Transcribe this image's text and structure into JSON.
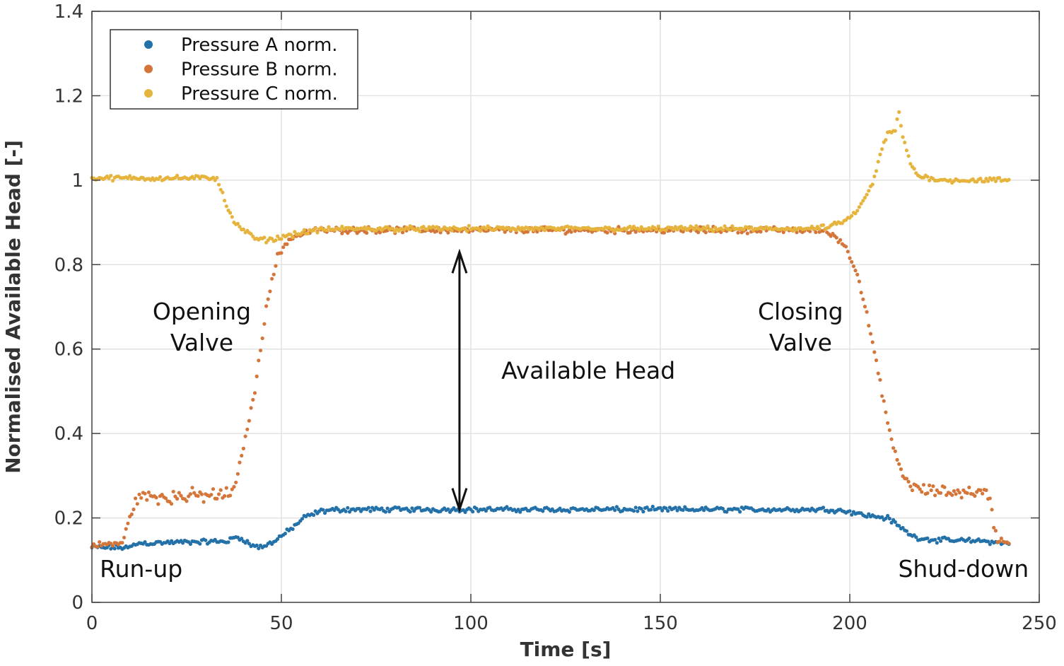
{
  "chart_data": {
    "type": "scatter",
    "xlabel": "Time [s]",
    "ylabel": "Normalised Available Head [-]",
    "xlim": [
      0,
      250
    ],
    "ylim": [
      0,
      1.4
    ],
    "xticks": [
      0,
      50,
      100,
      150,
      200,
      250
    ],
    "yticks": [
      0,
      0.2,
      0.4,
      0.6,
      0.8,
      1,
      1.2,
      1.4
    ],
    "xtick_labels": [
      "0",
      "50",
      "100",
      "150",
      "200",
      "250"
    ],
    "ytick_labels": [
      "0",
      "0.2",
      "0.4",
      "0.6",
      "0.8",
      "1",
      "1.2",
      "1.4"
    ],
    "grid": true,
    "legend_position": "top-left",
    "sample_step_s": 0.5,
    "series": [
      {
        "name": "Pressure A norm.",
        "color": "#2371a8",
        "noise": 0.004,
        "keypoints": [
          [
            0,
            0.13
          ],
          [
            10,
            0.13
          ],
          [
            12,
            0.14
          ],
          [
            36,
            0.145
          ],
          [
            38,
            0.155
          ],
          [
            40,
            0.15
          ],
          [
            42,
            0.135
          ],
          [
            45,
            0.13
          ],
          [
            48,
            0.145
          ],
          [
            52,
            0.17
          ],
          [
            56,
            0.2
          ],
          [
            60,
            0.215
          ],
          [
            65,
            0.22
          ],
          [
            195,
            0.22
          ],
          [
            200,
            0.215
          ],
          [
            205,
            0.205
          ],
          [
            210,
            0.2
          ],
          [
            213,
            0.18
          ],
          [
            217,
            0.155
          ],
          [
            222,
            0.148
          ],
          [
            236,
            0.145
          ],
          [
            240,
            0.14
          ],
          [
            242,
            0.14
          ]
        ]
      },
      {
        "name": "Pressure B norm.",
        "color": "#d4763a",
        "noise": 0.005,
        "keypoints": [
          [
            0,
            0.135
          ],
          [
            8,
            0.14
          ],
          [
            10,
            0.2
          ],
          [
            12,
            0.25
          ],
          [
            20,
            0.25
          ],
          [
            36,
            0.255
          ],
          [
            38,
            0.28
          ],
          [
            40,
            0.37
          ],
          [
            43,
            0.5
          ],
          [
            46,
            0.7
          ],
          [
            49,
            0.82
          ],
          [
            52,
            0.86
          ],
          [
            56,
            0.875
          ],
          [
            60,
            0.882
          ],
          [
            192,
            0.882
          ],
          [
            196,
            0.87
          ],
          [
            199,
            0.84
          ],
          [
            202,
            0.78
          ],
          [
            205,
            0.66
          ],
          [
            208,
            0.52
          ],
          [
            211,
            0.38
          ],
          [
            214,
            0.3
          ],
          [
            217,
            0.27
          ],
          [
            222,
            0.262
          ],
          [
            235,
            0.262
          ],
          [
            237,
            0.25
          ],
          [
            238,
            0.18
          ],
          [
            239,
            0.15
          ],
          [
            242,
            0.14
          ]
        ]
      },
      {
        "name": "Pressure C norm.",
        "color": "#e6b43c",
        "noise": 0.004,
        "keypoints": [
          [
            0,
            1.005
          ],
          [
            33,
            1.005
          ],
          [
            34,
            0.98
          ],
          [
            36,
            0.93
          ],
          [
            38,
            0.895
          ],
          [
            41,
            0.875
          ],
          [
            44,
            0.858
          ],
          [
            48,
            0.86
          ],
          [
            52,
            0.87
          ],
          [
            58,
            0.88
          ],
          [
            65,
            0.885
          ],
          [
            190,
            0.885
          ],
          [
            195,
            0.89
          ],
          [
            200,
            0.91
          ],
          [
            203,
            0.94
          ],
          [
            206,
            0.99
          ],
          [
            208,
            1.06
          ],
          [
            210,
            1.11
          ],
          [
            212,
            1.12
          ],
          [
            213,
            1.16
          ],
          [
            214,
            1.1
          ],
          [
            216,
            1.04
          ],
          [
            218,
            1.01
          ],
          [
            225,
            1.0
          ],
          [
            242,
            1.0
          ]
        ]
      }
    ],
    "annotations": [
      {
        "id": "opening",
        "lines": [
          "Opening",
          "Valve"
        ],
        "x": 29,
        "y": 0.67
      },
      {
        "id": "closing",
        "lines": [
          "Closing",
          "Valve"
        ],
        "x": 187,
        "y": 0.67
      },
      {
        "id": "available",
        "lines": [
          "Available Head"
        ],
        "x": 131,
        "y": 0.53
      },
      {
        "id": "runup",
        "lines": [
          "Run-up"
        ],
        "x": 13,
        "y": 0.06
      },
      {
        "id": "shutdown",
        "lines": [
          "Shud-down"
        ],
        "x": 230,
        "y": 0.06
      }
    ],
    "arrow": {
      "x": 97,
      "y_from": 0.22,
      "y_to": 0.83
    }
  }
}
